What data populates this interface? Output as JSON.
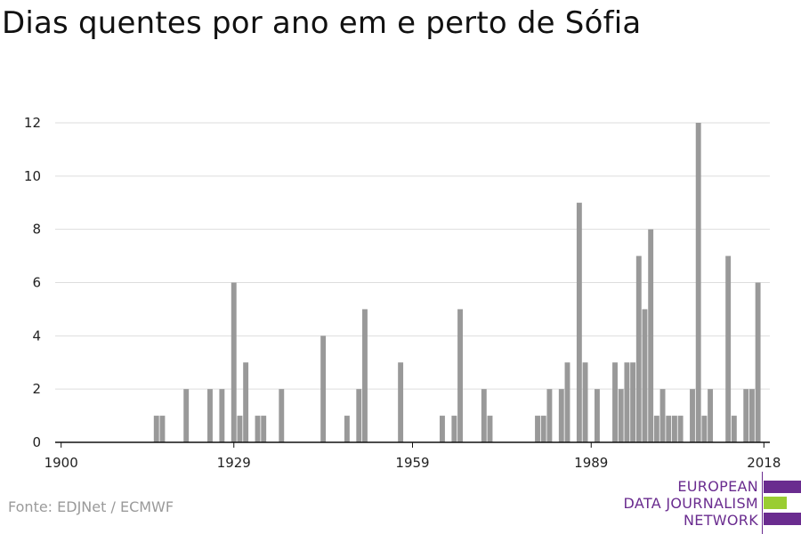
{
  "title": "Dias quentes por ano em e perto de Sófia",
  "source": "Fonte: EDJNet / ECMWF",
  "logo": {
    "lines": [
      "EUROPEAN",
      "DATA JOURNALISM",
      "NETWORK"
    ],
    "colors": [
      "#6a2c8f",
      "#9acd32",
      "#6a2c8f"
    ]
  },
  "chart_data": {
    "type": "bar",
    "title": "Dias quentes por ano em e perto de Sófia",
    "xlabel": "",
    "ylabel": "",
    "x_ticks": [
      1900,
      1929,
      1959,
      1989,
      2018
    ],
    "y_ticks": [
      0,
      2,
      4,
      6,
      8,
      10,
      12
    ],
    "xlim": [
      1899,
      2019
    ],
    "ylim": [
      0,
      12.5
    ],
    "grid": true,
    "bar_color": "#999999",
    "x": [
      1916,
      1917,
      1921,
      1925,
      1927,
      1929,
      1930,
      1931,
      1933,
      1934,
      1937,
      1944,
      1948,
      1950,
      1951,
      1957,
      1964,
      1966,
      1967,
      1971,
      1972,
      1980,
      1981,
      1982,
      1984,
      1985,
      1987,
      1988,
      1990,
      1993,
      1994,
      1995,
      1996,
      1997,
      1998,
      1999,
      2000,
      2001,
      2002,
      2003,
      2004,
      2006,
      2007,
      2008,
      2009,
      2012,
      2013,
      2015,
      2016,
      2017
    ],
    "values": [
      1,
      1,
      2,
      2,
      2,
      6,
      1,
      3,
      1,
      1,
      2,
      4,
      1,
      2,
      5,
      3,
      1,
      1,
      5,
      2,
      1,
      1,
      1,
      2,
      2,
      3,
      9,
      3,
      2,
      3,
      2,
      3,
      3,
      7,
      5,
      8,
      1,
      2,
      1,
      1,
      1,
      2,
      12,
      1,
      2,
      7,
      1,
      2,
      2,
      6
    ]
  }
}
